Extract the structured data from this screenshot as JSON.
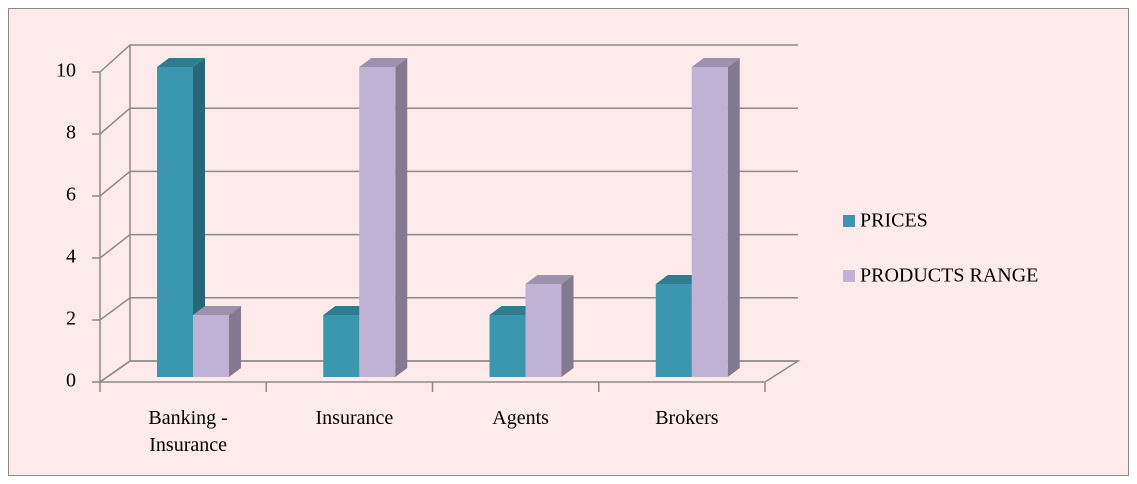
{
  "chart_data": {
    "type": "bar3d",
    "categories": [
      "Banking - Insurance",
      "Insurance",
      "Agents",
      "Brokers"
    ],
    "series": [
      {
        "name": "PRICES",
        "color": "#3a97ae",
        "values": [
          10,
          2,
          2,
          3
        ]
      },
      {
        "name": "PRODUCTS RANGE",
        "color": "#c0b2d4",
        "values": [
          2,
          10,
          3,
          10
        ]
      }
    ],
    "ylim": [
      0,
      10
    ],
    "yticks": [
      0,
      2,
      4,
      6,
      8,
      10
    ],
    "grid": true,
    "legend": "right"
  }
}
